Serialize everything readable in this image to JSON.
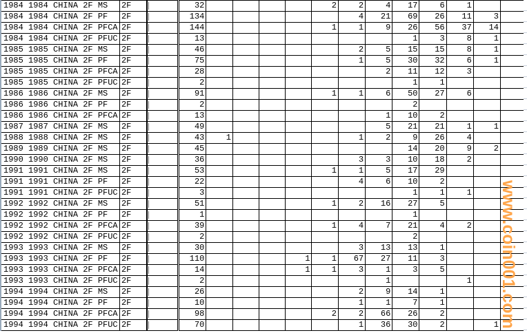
{
  "sheet": {
    "rows": [
      {
        "a": "1984 1984 CHINA 2F MS",
        "b": "2F",
        "count": "32",
        "vals": [
          "",
          "",
          "",
          "",
          "2",
          "2",
          "4",
          "17",
          "6",
          "1",
          "",
          ""
        ]
      },
      {
        "a": "1984 1984 CHINA 2F PF",
        "b": "2F",
        "count": "134",
        "vals": [
          "",
          "",
          "",
          "",
          "",
          "4",
          "21",
          "69",
          "26",
          "11",
          "3",
          ""
        ]
      },
      {
        "a": "1984 1984 CHINA 2F PFCA",
        "b": "2F",
        "count": "144",
        "vals": [
          "",
          "",
          "",
          "",
          "1",
          "1",
          "9",
          "26",
          "56",
          "37",
          "14",
          ""
        ]
      },
      {
        "a": "1984 1984 CHINA 2F PFUC",
        "b": "2F",
        "count": "13",
        "vals": [
          "",
          "",
          "",
          "",
          "",
          "",
          "",
          "1",
          "3",
          "8",
          "1",
          ""
        ]
      },
      {
        "a": "1985 1985 CHINA 2F MS",
        "b": "2F",
        "count": "46",
        "vals": [
          "",
          "",
          "",
          "",
          "",
          "2",
          "5",
          "15",
          "15",
          "8",
          "1",
          ""
        ]
      },
      {
        "a": "1985 1985 CHINA 2F PF",
        "b": "2F",
        "count": "75",
        "vals": [
          "",
          "",
          "",
          "",
          "",
          "1",
          "5",
          "30",
          "32",
          "6",
          "1",
          ""
        ]
      },
      {
        "a": "1985 1985 CHINA 2F PFCA",
        "b": "2F",
        "count": "28",
        "vals": [
          "",
          "",
          "",
          "",
          "",
          "",
          "2",
          "11",
          "12",
          "3",
          "",
          ""
        ]
      },
      {
        "a": "1985 1985 CHINA 2F PFUC",
        "b": "2F",
        "count": "2",
        "vals": [
          "",
          "",
          "",
          "",
          "",
          "",
          "",
          "1",
          "1",
          "",
          "",
          ""
        ]
      },
      {
        "a": "1986 1986 CHINA 2F MS",
        "b": "2F",
        "count": "91",
        "vals": [
          "",
          "",
          "",
          "",
          "1",
          "1",
          "6",
          "50",
          "27",
          "6",
          "",
          ""
        ]
      },
      {
        "a": "1986 1986 CHINA 2F PF",
        "b": "2F",
        "count": "2",
        "vals": [
          "",
          "",
          "",
          "",
          "",
          "",
          "",
          "2",
          "",
          "",
          "",
          ""
        ]
      },
      {
        "a": "1986 1986 CHINA 2F PFCA",
        "b": "2F",
        "count": "13",
        "vals": [
          "",
          "",
          "",
          "",
          "",
          "",
          "1",
          "10",
          "2",
          "",
          "",
          ""
        ]
      },
      {
        "a": "1987 1987 CHINA 2F MS",
        "b": "2F",
        "count": "49",
        "vals": [
          "",
          "",
          "",
          "",
          "",
          "",
          "5",
          "21",
          "21",
          "1",
          "1",
          ""
        ]
      },
      {
        "a": "1988 1988 CHINA 2F MS",
        "b": "2F",
        "count": "43",
        "vals": [
          "1",
          "",
          "",
          "",
          "",
          "1",
          "2",
          "9",
          "26",
          "4",
          "",
          ""
        ]
      },
      {
        "a": "1989 1989 CHINA 2F MS",
        "b": "2F",
        "count": "45",
        "vals": [
          "",
          "",
          "",
          "",
          "",
          "",
          "",
          "14",
          "20",
          "9",
          "2",
          ""
        ]
      },
      {
        "a": "1990 1990 CHINA 2F MS",
        "b": "2F",
        "count": "36",
        "vals": [
          "",
          "",
          "",
          "",
          "",
          "3",
          "3",
          "10",
          "18",
          "2",
          "",
          ""
        ]
      },
      {
        "a": "1991 1991 CHINA 2F MS",
        "b": "2F",
        "count": "53",
        "vals": [
          "",
          "",
          "",
          "",
          "1",
          "1",
          "5",
          "17",
          "29",
          "",
          "",
          ""
        ]
      },
      {
        "a": "1991 1991 CHINA 2F PF",
        "b": "2F",
        "count": "22",
        "vals": [
          "",
          "",
          "",
          "",
          "",
          "4",
          "6",
          "10",
          "2",
          "",
          "",
          ""
        ]
      },
      {
        "a": "1991 1991 CHINA 2F PFUC",
        "b": "2F",
        "count": "3",
        "vals": [
          "",
          "",
          "",
          "",
          "",
          "",
          "",
          "1",
          "1",
          "1",
          "",
          ""
        ]
      },
      {
        "a": "1992 1992 CHINA 2F MS",
        "b": "2F",
        "count": "51",
        "vals": [
          "",
          "",
          "",
          "",
          "1",
          "2",
          "16",
          "27",
          "5",
          "",
          "",
          ""
        ]
      },
      {
        "a": "1992 1992 CHINA 2F PF",
        "b": "2F",
        "count": "1",
        "vals": [
          "",
          "",
          "",
          "",
          "",
          "",
          "",
          "1",
          "",
          "",
          "",
          ""
        ]
      },
      {
        "a": "1992 1992 CHINA 2F PFCA",
        "b": "2F",
        "count": "39",
        "vals": [
          "",
          "",
          "",
          "",
          "1",
          "4",
          "7",
          "21",
          "4",
          "2",
          "",
          ""
        ]
      },
      {
        "a": "1992 1992 CHINA 2F PFUC",
        "b": "2F",
        "count": "2",
        "vals": [
          "",
          "",
          "",
          "",
          "",
          "",
          "",
          "2",
          "",
          "",
          "",
          ""
        ]
      },
      {
        "a": "1993 1993 CHINA 2F MS",
        "b": "2F",
        "count": "30",
        "vals": [
          "",
          "",
          "",
          "",
          "",
          "3",
          "13",
          "13",
          "1",
          "",
          "",
          ""
        ]
      },
      {
        "a": "1993 1993 CHINA 2F PF",
        "b": "2F",
        "count": "110",
        "vals": [
          "",
          "",
          "",
          "1",
          "1",
          "67",
          "27",
          "11",
          "3",
          "",
          "",
          ""
        ]
      },
      {
        "a": "1993 1993 CHINA 2F PFCA",
        "b": "2F",
        "count": "14",
        "vals": [
          "",
          "",
          "",
          "1",
          "1",
          "3",
          "1",
          "3",
          "5",
          "",
          "",
          ""
        ]
      },
      {
        "a": "1993 1993 CHINA 2F PFUC",
        "b": "2F",
        "count": "2",
        "vals": [
          "",
          "",
          "",
          "",
          "",
          "",
          "1",
          "",
          "",
          "1",
          "",
          ""
        ]
      },
      {
        "a": "1994 1994 CHINA 2F MS",
        "b": "2F",
        "count": "26",
        "vals": [
          "",
          "",
          "",
          "",
          "",
          "2",
          "9",
          "14",
          "1",
          "",
          "",
          ""
        ]
      },
      {
        "a": "1994 1994 CHINA 2F PF",
        "b": "2F",
        "count": "10",
        "vals": [
          "",
          "",
          "",
          "",
          "",
          "1",
          "1",
          "7",
          "1",
          "",
          "",
          ""
        ]
      },
      {
        "a": "1994 1994 CHINA 2F PFCA",
        "b": "2F",
        "count": "98",
        "vals": [
          "",
          "",
          "",
          "",
          "2",
          "2",
          "66",
          "26",
          "2",
          "",
          "",
          ""
        ]
      },
      {
        "a": "1994 1994 CHINA 2F PFUC",
        "b": "2F",
        "count": "70",
        "vals": [
          "",
          "",
          "",
          "",
          "",
          "1",
          "36",
          "30",
          "2",
          "",
          "1",
          ""
        ]
      }
    ]
  },
  "watermark": "www.coin001.com",
  "colors": {
    "watermark": "#ffa54a",
    "grid": "#000000"
  }
}
